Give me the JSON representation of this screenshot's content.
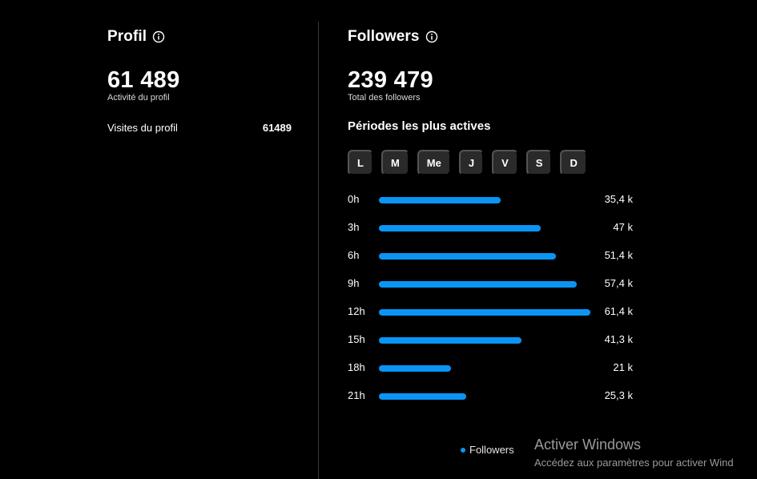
{
  "profile": {
    "title": "Profil",
    "total": "61 489",
    "total_label": "Activité du profil",
    "visits_label": "Visites du profil",
    "visits_value": "61489"
  },
  "followers": {
    "title": "Followers",
    "total": "239 479",
    "total_label": "Total des followers",
    "periods_title": "Périodes les plus actives",
    "days": [
      "L",
      "M",
      "Me",
      "J",
      "V",
      "S",
      "D"
    ]
  },
  "chart_data": {
    "type": "bar",
    "orientation": "horizontal",
    "categories": [
      "0h",
      "3h",
      "6h",
      "9h",
      "12h",
      "15h",
      "18h",
      "21h"
    ],
    "series": [
      {
        "name": "Followers",
        "values": [
          35400,
          47000,
          51400,
          57400,
          61400,
          41300,
          21000,
          25300
        ],
        "labels": [
          "35,4 k",
          "47 k",
          "51,4 k",
          "57,4 k",
          "61,4 k",
          "41,3 k",
          "21 k",
          "25,3 k"
        ]
      }
    ],
    "xlim": [
      0,
      61400
    ],
    "color": "#0a95f5",
    "legend": "bottom"
  },
  "legend": {
    "label": "Followers"
  },
  "watermark": {
    "line1": "Activer Windows",
    "line2": "Accédez aux paramètres pour activer Wind"
  },
  "colors": {
    "accent": "#0a95f5",
    "background": "#000000",
    "chip": "#2a2a2a"
  },
  "icons": {
    "info": "info-circle-icon"
  }
}
